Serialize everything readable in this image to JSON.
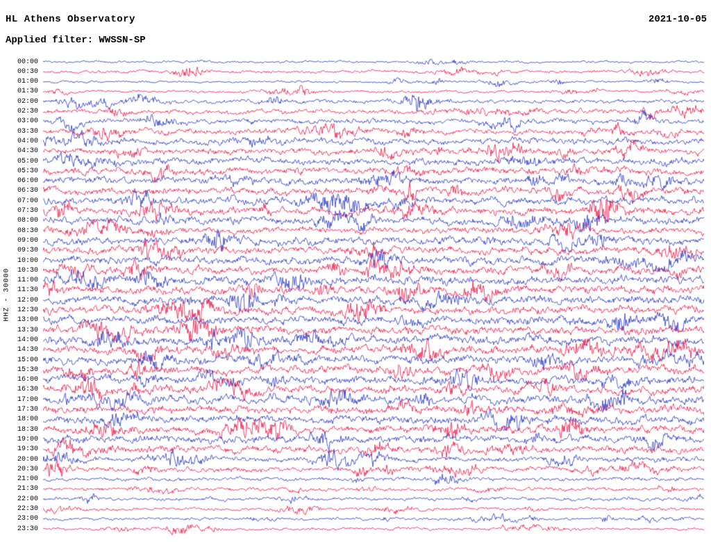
{
  "header": {
    "title": "HL Athens Observatory",
    "date": "2021-10-05",
    "filter_label": "Applied filter: WWSSN-SP"
  },
  "y_axis_label": "HHZ - 30000",
  "chart_data": {
    "type": "line",
    "variant": "helicorder-seismogram",
    "title": "HL Athens Observatory",
    "date": "2021-10-05",
    "filter": "WWSSN-SP",
    "channel_scale_label": "HHZ - 30000",
    "minutes_per_row": 30,
    "rows": [
      "00:00",
      "00:30",
      "01:00",
      "01:30",
      "02:00",
      "02:30",
      "03:00",
      "03:30",
      "04:00",
      "04:30",
      "05:00",
      "05:30",
      "06:00",
      "06:30",
      "07:00",
      "07:30",
      "08:00",
      "08:30",
      "09:00",
      "09:30",
      "10:00",
      "10:30",
      "11:00",
      "11:30",
      "12:00",
      "12:30",
      "13:00",
      "13:30",
      "14:00",
      "14:30",
      "15:00",
      "15:30",
      "16:00",
      "16:30",
      "17:00",
      "17:30",
      "18:00",
      "18:30",
      "19:00",
      "19:30",
      "20:00",
      "20:30",
      "21:00",
      "21:30",
      "22:00",
      "22:30",
      "23:00",
      "23:30"
    ],
    "colors": {
      "even_row": "#2433c4",
      "odd_row": "#ee1243"
    },
    "row_relative_amplitudes": [
      1.6,
      2.0,
      1.6,
      1.8,
      2.8,
      3.2,
      3.4,
      3.8,
      4.2,
      4.4,
      4.8,
      4.8,
      4.8,
      5.0,
      5.2,
      5.2,
      5.0,
      4.6,
      5.0,
      5.2,
      5.4,
      5.4,
      5.8,
      5.6,
      5.6,
      5.4,
      5.6,
      5.8,
      6.0,
      5.6,
      5.8,
      5.6,
      5.6,
      5.4,
      5.6,
      5.8,
      5.6,
      5.4,
      5.2,
      4.8,
      3.6,
      3.4,
      2.6,
      2.4,
      2.4,
      2.0,
      1.9,
      1.8
    ],
    "notable_events": [
      {
        "time": "00:30",
        "x_fraction": 0.22,
        "gain": 3.5
      },
      {
        "time": "01:00",
        "x_fraction": 0.69,
        "gain": 3.0
      },
      {
        "time": "01:30",
        "x_fraction": 0.35,
        "gain": 2.5
      },
      {
        "time": "03:00",
        "x_fraction": 0.04,
        "gain": 2.5
      },
      {
        "time": "07:00",
        "x_fraction": 0.48,
        "gain": 2.5
      },
      {
        "time": "07:30",
        "x_fraction": 0.85,
        "gain": 4.5
      },
      {
        "time": "08:00",
        "x_fraction": 0.82,
        "gain": 3.0
      },
      {
        "time": "09:30",
        "x_fraction": 0.16,
        "gain": 2.8
      },
      {
        "time": "10:30",
        "x_fraction": 0.14,
        "gain": 2.6
      },
      {
        "time": "14:00",
        "x_fraction": 0.1,
        "gain": 2.4
      },
      {
        "time": "15:00",
        "x_fraction": 0.17,
        "gain": 2.6
      },
      {
        "time": "18:30",
        "x_fraction": 0.8,
        "gain": 2.6
      },
      {
        "time": "20:00",
        "x_fraction": 0.44,
        "gain": 2.6
      },
      {
        "time": "20:30",
        "x_fraction": 0.02,
        "gain": 3.5
      },
      {
        "time": "22:00",
        "x_fraction": 0.07,
        "gain": 2.5
      },
      {
        "time": "23:30",
        "x_fraction": 0.21,
        "gain": 2.2
      }
    ]
  }
}
